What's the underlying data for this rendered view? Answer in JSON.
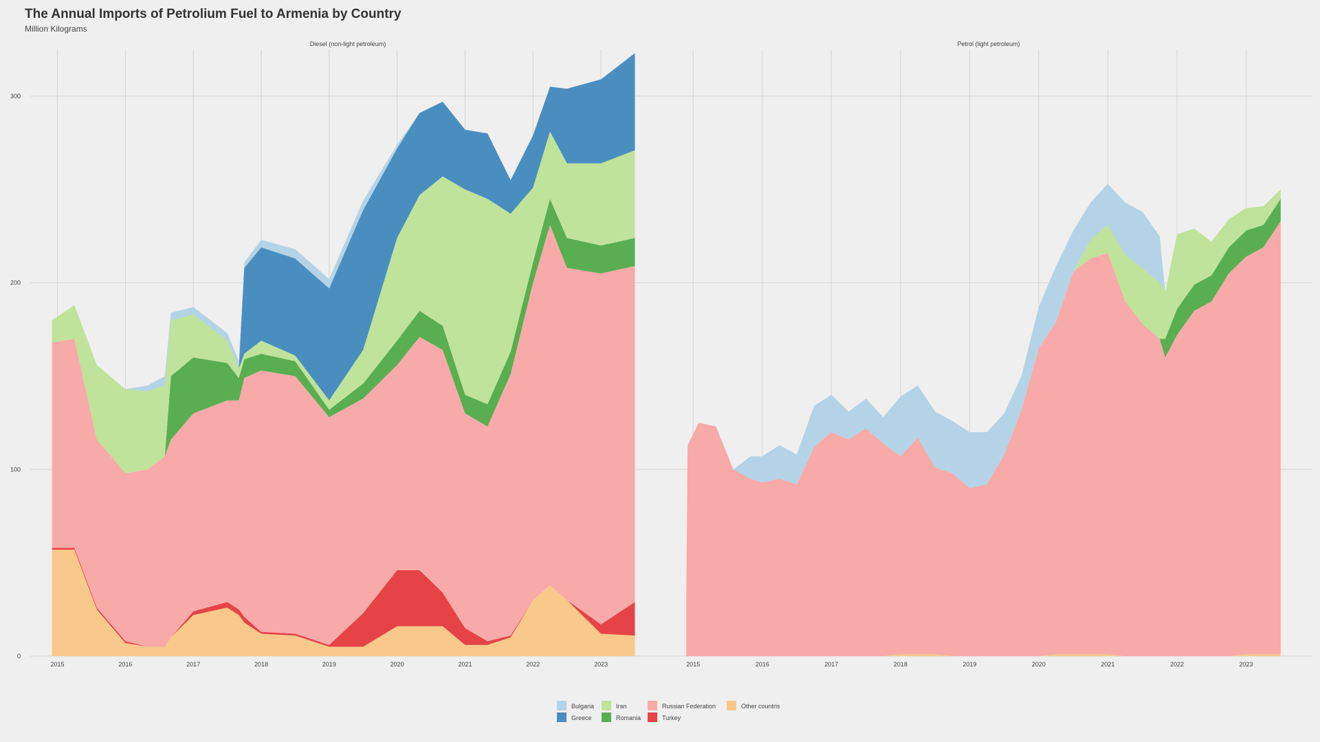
{
  "chart_data": {
    "type": "area",
    "title": "The Annual Imports of Petrolium Fuel to Armenia by Country",
    "subtitle": "Million Kilograms",
    "xlabel": "",
    "ylabel": "",
    "grid": true,
    "legend_position": "bottom",
    "stack_order": [
      "Other countris",
      "Turkey",
      "Russian Federation",
      "Romania",
      "Iran",
      "Greece",
      "Bulgaria"
    ],
    "legend": [
      {
        "name": "Bulgaria",
        "color": "#b4d3e6"
      },
      {
        "name": "Greece",
        "color": "#4a8ec0"
      },
      {
        "name": "Iran",
        "color": "#bfe39a"
      },
      {
        "name": "Romania",
        "color": "#5aae52"
      },
      {
        "name": "Russian Federation",
        "color": "#f7aaa8"
      },
      {
        "name": "Turkey",
        "color": "#e64347"
      },
      {
        "name": "Other countris",
        "color": "#f8c98a"
      }
    ],
    "x_ticks": [
      "2015",
      "2016",
      "2017",
      "2018",
      "2019",
      "2020",
      "2021",
      "2022",
      "2023"
    ],
    "y_ticks": [
      "0",
      "100",
      "200",
      "300"
    ],
    "ylim": [
      0,
      325
    ],
    "xlim": [
      2014.6,
      2023.95
    ],
    "panels": [
      {
        "title": "Diesel (non-light petroleum)",
        "x": [
          2014.92,
          2015.25,
          2015.58,
          2016.0,
          2016.33,
          2016.58,
          2016.67,
          2017.0,
          2017.5,
          2017.67,
          2017.75,
          2018.0,
          2018.5,
          2019.0,
          2019.5,
          2020.0,
          2020.33,
          2020.67,
          2021.0,
          2021.33,
          2021.67,
          2022.0,
          2022.25,
          2022.5,
          2023.0,
          2023.5
        ],
        "series": [
          {
            "name": "Other countris",
            "values": [
              57,
              57,
              25,
              7,
              5,
              5,
              10,
              22,
              26,
              22,
              18,
              12,
              11,
              5,
              5,
              16,
              16,
              16,
              6,
              6,
              10,
              30,
              38,
              30,
              12,
              11
            ]
          },
          {
            "name": "Turkey",
            "values": [
              1,
              1,
              1,
              1,
              0,
              0,
              0,
              2,
              3,
              3,
              3,
              1,
              1,
              1,
              18,
              30,
              30,
              18,
              9,
              2,
              1,
              0,
              0,
              0,
              5,
              18
            ]
          },
          {
            "name": "Russian Federation",
            "values": [
              110,
              112,
              90,
              90,
              95,
              102,
              106,
              106,
              108,
              112,
              128,
              140,
              138,
              122,
              115,
              110,
              125,
              130,
              115,
              115,
              140,
              170,
              193,
              178,
              188,
              180
            ]
          },
          {
            "name": "Romania",
            "values": [
              0,
              0,
              0,
              0,
              0,
              0,
              34,
              30,
              20,
              12,
              10,
              9,
              8,
              4,
              8,
              13,
              14,
              13,
              10,
              12,
              12,
              11,
              14,
              16,
              15,
              15
            ]
          },
          {
            "name": "Iran",
            "values": [
              12,
              18,
              40,
              45,
              42,
              38,
              30,
              23,
              12,
              5,
              3,
              7,
              3,
              5,
              18,
              55,
              62,
              80,
              110,
              110,
              74,
              40,
              36,
              40,
              44,
              47
            ]
          },
          {
            "name": "Greece",
            "values": [
              0,
              0,
              0,
              0,
              0,
              0,
              0,
              0,
              0,
              0,
              46,
              50,
              52,
              60,
              75,
              48,
              44,
              40,
              32,
              35,
              18,
              28,
              24,
              40,
              45,
              52
            ]
          },
          {
            "name": "Bulgaria",
            "values": [
              0,
              0,
              0,
              0,
              3,
              5,
              4,
              4,
              4,
              4,
              3,
              4,
              5,
              5,
              5,
              2,
              0,
              0,
              0,
              0,
              0,
              0,
              0,
              0,
              0,
              0
            ]
          }
        ]
      },
      {
        "title": "Petrol (light petroleum)",
        "x": [
          2014.9,
          2014.92,
          2015.08,
          2015.33,
          2015.58,
          2015.83,
          2016.0,
          2016.25,
          2016.5,
          2016.75,
          2017.0,
          2017.25,
          2017.5,
          2017.75,
          2018.0,
          2018.25,
          2018.5,
          2018.75,
          2019.0,
          2019.25,
          2019.5,
          2019.75,
          2020.0,
          2020.25,
          2020.5,
          2020.75,
          2021.0,
          2021.25,
          2021.5,
          2021.75,
          2021.83,
          2022.0,
          2022.25,
          2022.5,
          2022.75,
          2023.0,
          2023.25,
          2023.5
        ],
        "series": [
          {
            "name": "Other countris",
            "values": [
              0,
              0,
              0,
              0,
              0,
              0,
              0,
              0,
              0,
              0,
              0,
              0,
              0,
              0,
              1,
              1,
              1,
              0,
              0,
              0,
              0,
              0,
              0,
              1,
              1,
              1,
              1,
              0,
              0,
              0,
              0,
              0,
              0,
              0,
              0,
              1,
              1,
              1
            ]
          },
          {
            "name": "Turkey",
            "values": [
              0,
              0,
              0,
              0,
              0,
              0,
              0,
              0,
              0,
              0,
              0,
              0,
              0,
              0,
              0,
              0,
              0,
              0,
              0,
              0,
              0,
              0,
              0,
              0,
              0,
              0,
              0,
              0,
              0,
              0,
              0,
              0,
              0,
              0,
              0,
              0,
              0,
              0
            ]
          },
          {
            "name": "Russian Federation",
            "values": [
              30,
              113,
              125,
              123,
              100,
              95,
              93,
              95,
              92,
              112,
              120,
              116,
              122,
              114,
              106,
              116,
              100,
              98,
              90,
              92,
              108,
              132,
              165,
              178,
              205,
              212,
              215,
              190,
              178,
              170,
              160,
              172,
              185,
              190,
              205,
              213,
              218,
              232
            ]
          },
          {
            "name": "Romania",
            "values": [
              0,
              0,
              0,
              0,
              0,
              0,
              0,
              0,
              0,
              0,
              0,
              0,
              0,
              0,
              0,
              0,
              0,
              0,
              0,
              0,
              0,
              0,
              0,
              0,
              0,
              0,
              0,
              0,
              0,
              0,
              10,
              14,
              14,
              14,
              14,
              14,
              12,
              12
            ]
          },
          {
            "name": "Iran",
            "values": [
              0,
              0,
              0,
              0,
              0,
              0,
              0,
              0,
              0,
              0,
              0,
              0,
              0,
              0,
              0,
              0,
              0,
              0,
              0,
              0,
              0,
              0,
              0,
              0,
              0,
              10,
              15,
              25,
              30,
              30,
              25,
              40,
              30,
              18,
              15,
              12,
              10,
              5
            ]
          },
          {
            "name": "Greece",
            "values": [
              0,
              0,
              0,
              0,
              0,
              0,
              0,
              0,
              0,
              0,
              0,
              0,
              0,
              0,
              0,
              0,
              0,
              0,
              0,
              0,
              0,
              0,
              0,
              0,
              0,
              0,
              0,
              0,
              0,
              0,
              0,
              0,
              0,
              0,
              0,
              0,
              0,
              0
            ]
          },
          {
            "name": "Bulgaria",
            "values": [
              0,
              0,
              0,
              0,
              0,
              12,
              14,
              18,
              16,
              22,
              20,
              15,
              16,
              14,
              32,
              28,
              30,
              28,
              30,
              28,
              22,
              18,
              22,
              30,
              22,
              20,
              22,
              28,
              30,
              25,
              0,
              0,
              0,
              0,
              0,
              0,
              0,
              0
            ]
          }
        ]
      }
    ]
  }
}
